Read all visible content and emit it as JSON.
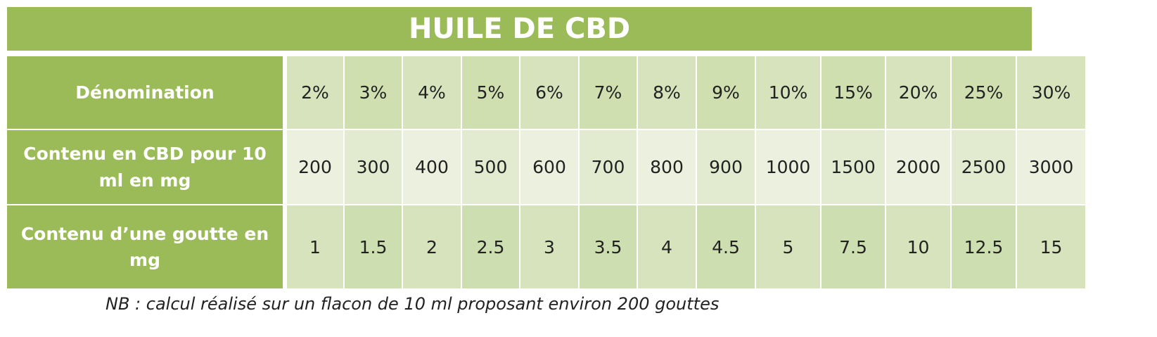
{
  "title": "HUILE DE CBD",
  "table": {
    "rows": [
      {
        "label": "Dénomination",
        "cells": [
          "2%",
          "3%",
          "4%",
          "5%",
          "6%",
          "7%",
          "8%",
          "9%",
          "10%",
          "15%",
          "20%",
          "25%",
          "30%"
        ]
      },
      {
        "label": "Contenu en CBD pour 10 ml en mg",
        "cells": [
          "200",
          "300",
          "400",
          "500",
          "600",
          "700",
          "800",
          "900",
          "1000",
          "1500",
          "2000",
          "2500",
          "3000"
        ]
      },
      {
        "label": "Contenu d’une goutte en mg",
        "cells": [
          "1",
          "1.5",
          "2",
          "2.5",
          "3",
          "3.5",
          "4",
          "4.5",
          "5",
          "7.5",
          "10",
          "12.5",
          "15"
        ]
      }
    ]
  },
  "note": "NB : calcul réalisé sur un flacon de 10 ml proposant environ 200 gouttes"
}
